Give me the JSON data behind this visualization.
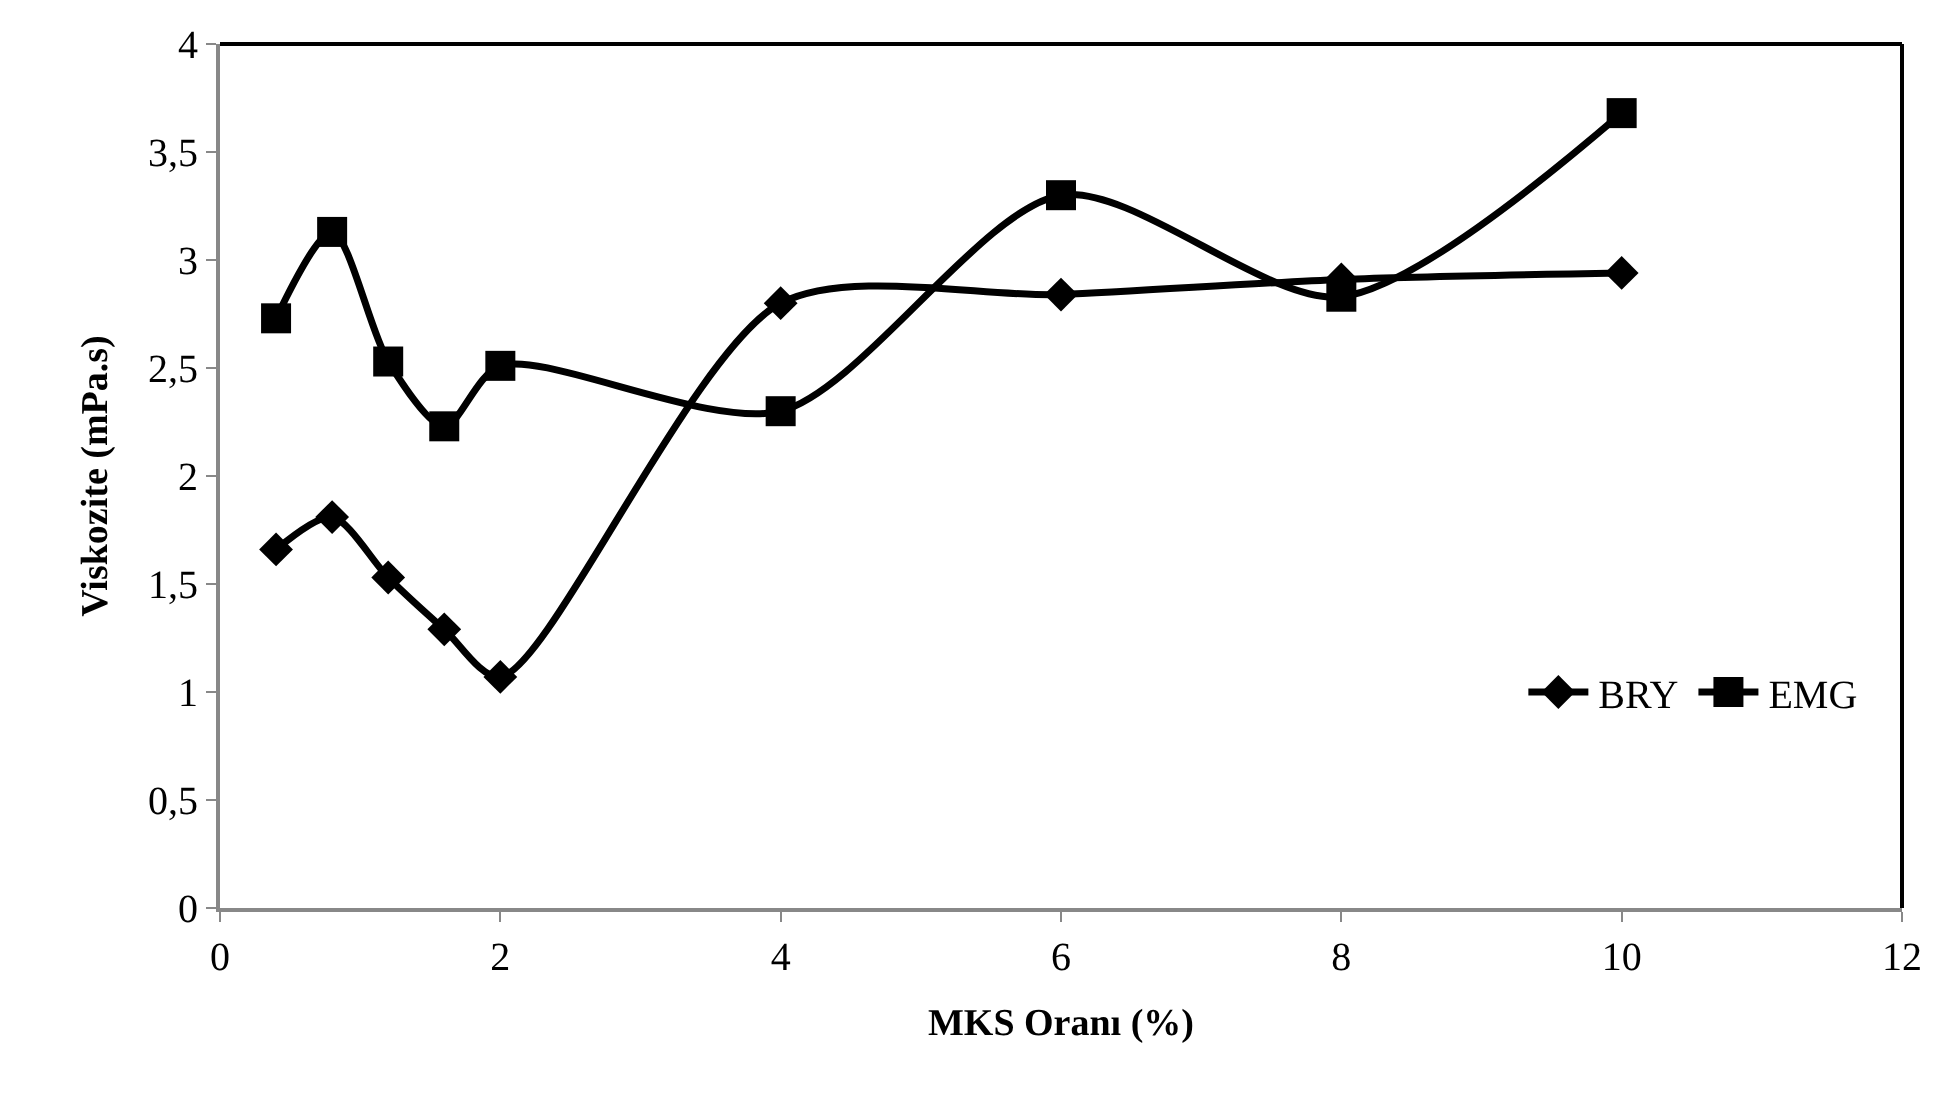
{
  "chart_data": {
    "type": "line",
    "xlabel": "MKS Oranı (%)",
    "ylabel": "Viskozite (mPa.s)",
    "x": [
      0.4,
      0.8,
      1.2,
      1.6,
      2,
      4,
      6,
      8,
      10
    ],
    "xlim": [
      0,
      12
    ],
    "xticks": [
      0,
      2,
      4,
      6,
      8,
      10,
      12
    ],
    "ylim": [
      0,
      4
    ],
    "yticks": [
      0,
      {
        "value": 0.5,
        "label": "0,5"
      },
      1,
      {
        "value": 1.5,
        "label": "1,5"
      },
      2,
      {
        "value": 2.5,
        "label": "2,5"
      },
      3,
      {
        "value": 3.5,
        "label": "3,5"
      },
      4
    ],
    "legend": "bottom right",
    "line_style": "solid",
    "series": [
      {
        "name": "BRY",
        "color": "#000000",
        "marker": "diamond",
        "values": [
          1.66,
          1.81,
          1.53,
          1.29,
          1.07,
          2.8,
          2.84,
          2.91,
          2.94
        ]
      },
      {
        "name": "EMG",
        "color": "#000000",
        "marker": "square",
        "values": [
          2.73,
          3.13,
          2.53,
          2.23,
          2.51,
          2.3,
          3.3,
          2.83,
          3.68
        ]
      }
    ]
  }
}
